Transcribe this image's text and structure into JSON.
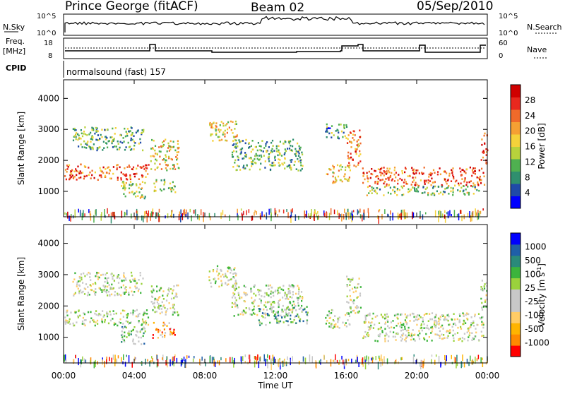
{
  "header": {
    "station": "Prince George (fitACF)",
    "beam": "Beam 02",
    "date": "05/Sep/2010"
  },
  "aux": {
    "nsky_label": "N.Sky",
    "nsky_ticks": [
      "10^5",
      "10^0"
    ],
    "nsearch_label": "N.Search",
    "nsearch_ticks": [
      "10^5",
      "10^0"
    ],
    "freq_label": "Freq.",
    "freq_unit": "[MHz]",
    "freq_ticks": [
      "18",
      "8"
    ],
    "nave_label": "Nave",
    "nave_ticks": [
      "60",
      "0"
    ],
    "cpid_label": "CPID",
    "cpid_value": "normalsound (fast) 157"
  },
  "colors": {
    "power": [
      "#0000ff",
      "#1f4aa8",
      "#2f8f6e",
      "#4fb050",
      "#b8d23c",
      "#f5d23a",
      "#f5a033",
      "#f06a2a",
      "#e8281e",
      "#d00000"
    ],
    "velocity": [
      "#ff0000",
      "#ff8a00",
      "#ffb400",
      "#ffcc66",
      "#c8c8c8",
      "#c8c8c8",
      "#9ad23c",
      "#3cb43c",
      "#2a8a7a",
      "#1f5fa8",
      "#0000ff"
    ]
  },
  "chart_data": [
    {
      "type": "heatmap",
      "name": "power",
      "ylabel": "Slant Range [km]",
      "xlabel": "Time UT",
      "x_ticks": [
        "00:00",
        "04:00",
        "08:00",
        "12:00",
        "16:00",
        "20:00",
        "00:00"
      ],
      "y_ticks": [
        "1000",
        "2000",
        "3000",
        "4000"
      ],
      "ylim": [
        180,
        4600
      ],
      "xlim": [
        0,
        24
      ],
      "colorbar_label": "Power [dB]",
      "colorbar_ticks": [
        "28",
        "24",
        "20",
        "16",
        "12",
        "8",
        "4"
      ],
      "bands": [
        {
          "t0": 0.0,
          "t1": 4.8,
          "r0": 1400,
          "r1": 1900,
          "level": 0.75
        },
        {
          "t0": 0.5,
          "t1": 4.5,
          "r0": 2350,
          "r1": 3100,
          "level": 0.35
        },
        {
          "t0": 3.2,
          "t1": 4.6,
          "r0": 800,
          "r1": 1400,
          "level": 0.45
        },
        {
          "t0": 4.9,
          "t1": 6.5,
          "r0": 1700,
          "r1": 2700,
          "level": 0.55
        },
        {
          "t0": 5.0,
          "t1": 6.3,
          "r0": 1000,
          "r1": 1400,
          "level": 0.4
        },
        {
          "t0": 8.2,
          "t1": 9.8,
          "r0": 2600,
          "r1": 3300,
          "level": 0.5
        },
        {
          "t0": 9.5,
          "t1": 13.5,
          "r0": 1700,
          "r1": 2700,
          "level": 0.35
        },
        {
          "t0": 14.8,
          "t1": 16.2,
          "r0": 1300,
          "r1": 1900,
          "level": 0.6
        },
        {
          "t0": 14.8,
          "t1": 16.0,
          "r0": 2700,
          "r1": 3200,
          "level": 0.3
        },
        {
          "t0": 16.0,
          "t1": 16.8,
          "r0": 1800,
          "r1": 3000,
          "level": 0.7
        },
        {
          "t0": 16.9,
          "t1": 23.8,
          "r0": 1200,
          "r1": 1800,
          "level": 0.8
        },
        {
          "t0": 17.0,
          "t1": 23.5,
          "r0": 900,
          "r1": 1200,
          "level": 0.4
        },
        {
          "t0": 23.6,
          "t1": 24.0,
          "r0": 1900,
          "r1": 2900,
          "level": 0.8
        }
      ]
    },
    {
      "type": "heatmap",
      "name": "velocity",
      "ylabel": "Slant Range [km]",
      "xlabel": "Time UT",
      "x_ticks": [
        "00:00",
        "04:00",
        "08:00",
        "12:00",
        "16:00",
        "20:00",
        "00:00"
      ],
      "y_ticks": [
        "1000",
        "2000",
        "3000",
        "4000"
      ],
      "ylim": [
        180,
        4600
      ],
      "xlim": [
        0,
        24
      ],
      "colorbar_label": "Velocity [m s",
      "colorbar_unit_sup": "-1",
      "colorbar_unit_close": "]",
      "colorbar_ticks": [
        "1000",
        "500",
        "100",
        "25",
        "-25",
        "-100",
        "-500",
        "-1000"
      ],
      "bands": [
        {
          "t0": 0.0,
          "t1": 4.8,
          "r0": 1400,
          "r1": 1900,
          "level": 0.5
        },
        {
          "t0": 0.5,
          "t1": 4.5,
          "r0": 2350,
          "r1": 3100,
          "level": 0.5
        },
        {
          "t0": 3.2,
          "t1": 4.6,
          "r0": 800,
          "r1": 1400,
          "level": 0.62
        },
        {
          "t0": 4.9,
          "t1": 6.5,
          "r0": 1700,
          "r1": 2700,
          "level": 0.5
        },
        {
          "t0": 5.0,
          "t1": 6.3,
          "r0": 1000,
          "r1": 1500,
          "level": 0.22
        },
        {
          "t0": 8.2,
          "t1": 9.8,
          "r0": 2600,
          "r1": 3300,
          "level": 0.5
        },
        {
          "t0": 9.5,
          "t1": 13.5,
          "r0": 1700,
          "r1": 2700,
          "level": 0.5
        },
        {
          "t0": 11.0,
          "t1": 13.8,
          "r0": 1400,
          "r1": 2000,
          "level": 0.65
        },
        {
          "t0": 14.8,
          "t1": 16.2,
          "r0": 1300,
          "r1": 1900,
          "level": 0.5
        },
        {
          "t0": 16.0,
          "t1": 16.8,
          "r0": 1800,
          "r1": 3000,
          "level": 0.5
        },
        {
          "t0": 16.9,
          "t1": 23.8,
          "r0": 900,
          "r1": 1800,
          "level": 0.5
        },
        {
          "t0": 23.6,
          "t1": 24.0,
          "r0": 1900,
          "r1": 2900,
          "level": 0.5
        }
      ]
    }
  ]
}
